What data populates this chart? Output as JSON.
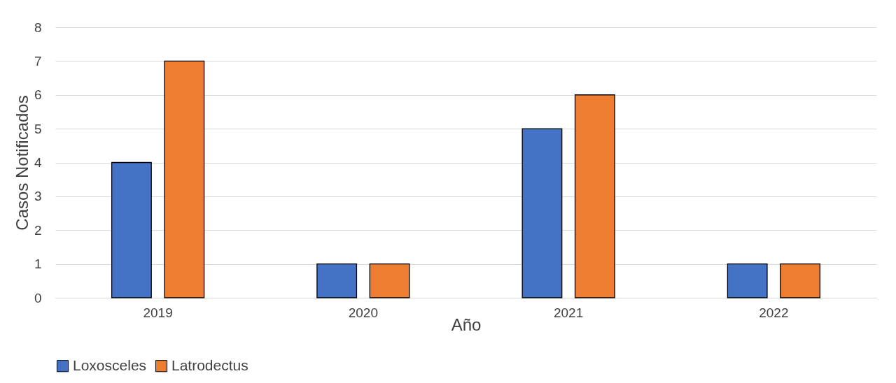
{
  "chart_data": {
    "type": "bar",
    "xlabel": "Año",
    "ylabel": "Casos Notificados",
    "categories": [
      "2019",
      "2020",
      "2021",
      "2022"
    ],
    "series": [
      {
        "name": "Loxosceles",
        "color": "#4472c4",
        "values": [
          4,
          1,
          5,
          1
        ]
      },
      {
        "name": "Latrodectus",
        "color": "#ed7d31",
        "values": [
          7,
          1,
          6,
          1
        ]
      }
    ],
    "ylim": [
      0,
      8
    ],
    "yticks": [
      0,
      1,
      2,
      3,
      4,
      5,
      6,
      7,
      8
    ],
    "grid": "y",
    "legend": "bottom"
  }
}
